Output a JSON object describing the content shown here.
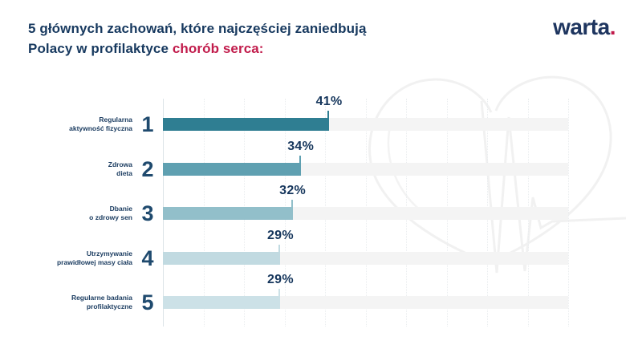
{
  "title": {
    "line1": "5 głównych zachowań, które najczęściej zaniedbują",
    "line2_prefix": "Polacy w profilaktyce ",
    "line2_highlight": "chorób serca:"
  },
  "logo": {
    "brand": "warta",
    "dot": "."
  },
  "colors": {
    "title_navy": "#17395F",
    "accent_crimson": "#C11B4B",
    "rank_navy": "#1F4A6E",
    "label_navy": "#1D3E62",
    "value_navy": "#16365C",
    "track_gray": "#F4F4F4",
    "axis_gray": "#DCE4E8",
    "watermark_gray": "#F1F1F1"
  },
  "chart_data": {
    "type": "bar",
    "orientation": "horizontal",
    "title": "5 głównych zachowań, które najczęściej zaniedbują Polacy w profilaktyce chorób serca:",
    "categories": [
      "Regularna aktywność fizyczna",
      "Zdrowa dieta",
      "Dbanie o zdrowy sen",
      "Utrzymywanie prawidłowej masy ciała",
      "Regularne badania profilaktyczne"
    ],
    "category_label_lines": [
      [
        "Regularna",
        "aktywność fizyczna"
      ],
      [
        "Zdrowa",
        "dieta"
      ],
      [
        "Dbanie",
        "o zdrowy sen"
      ],
      [
        "Utrzymywanie",
        "prawidłowej masy ciała"
      ],
      [
        "Regularne badania",
        "profilaktyczne"
      ]
    ],
    "ranks": [
      "1",
      "2",
      "3",
      "4",
      "5"
    ],
    "values": [
      41,
      34,
      32,
      29,
      29
    ],
    "value_labels": [
      "41%",
      "34%",
      "32%",
      "29%",
      "29%"
    ],
    "xlim": [
      0,
      100
    ],
    "grid": "vertical-dotted",
    "legend": "none",
    "bar_colors": [
      "#2F7E92",
      "#5FA0B1",
      "#92BFCA",
      "#C1DAE1",
      "#CCE1E7"
    ]
  },
  "watermark": {
    "name": "heart-with-ecg-outline"
  }
}
